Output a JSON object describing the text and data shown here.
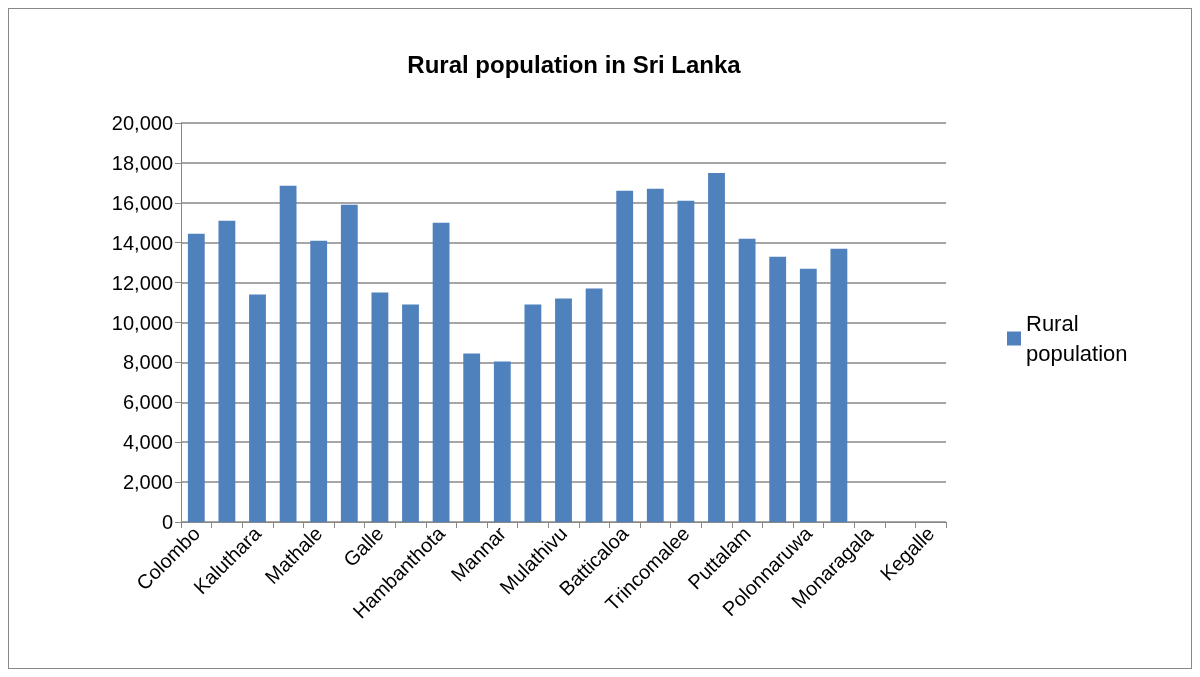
{
  "chart_data": {
    "type": "bar",
    "title": "Rural population in Sri Lanka",
    "categories": [
      "Colombo",
      null,
      "Kaluthara",
      null,
      "Mathale",
      null,
      "Galle",
      null,
      "Hambanthota",
      null,
      "Mannar",
      null,
      "Mulathivu",
      null,
      "Batticaloa",
      null,
      "Trincomalee",
      null,
      "Puttalam",
      null,
      "Polonnaruwa",
      null,
      "Monaragala",
      null,
      "Kegalle"
    ],
    "series": [
      {
        "name": "Rural population",
        "color": "#4f81bd",
        "values": [
          14450,
          15100,
          11400,
          16850,
          14100,
          15900,
          11500,
          10900,
          15000,
          8450,
          8050,
          10900,
          11200,
          11700,
          16600,
          16700,
          16100,
          17500,
          14200,
          13300,
          12700,
          13700,
          null,
          null,
          null
        ]
      }
    ],
    "ylim": [
      0,
      20000
    ],
    "yticks": [
      0,
      {
        "value": 2000,
        "label": "2,000"
      },
      {
        "value": 4000,
        "label": "4,000"
      },
      {
        "value": 6000,
        "label": "6,000"
      },
      {
        "value": 8000,
        "label": "8,000"
      },
      {
        "value": 10000,
        "label": "10,000"
      },
      {
        "value": 12000,
        "label": "12,000"
      },
      {
        "value": 14000,
        "label": "14,000"
      },
      {
        "value": 16000,
        "label": "16,000"
      },
      {
        "value": 18000,
        "label": "18,000"
      },
      {
        "value": 20000,
        "label": "20,000"
      }
    ],
    "grid": "y",
    "legend": "right"
  }
}
